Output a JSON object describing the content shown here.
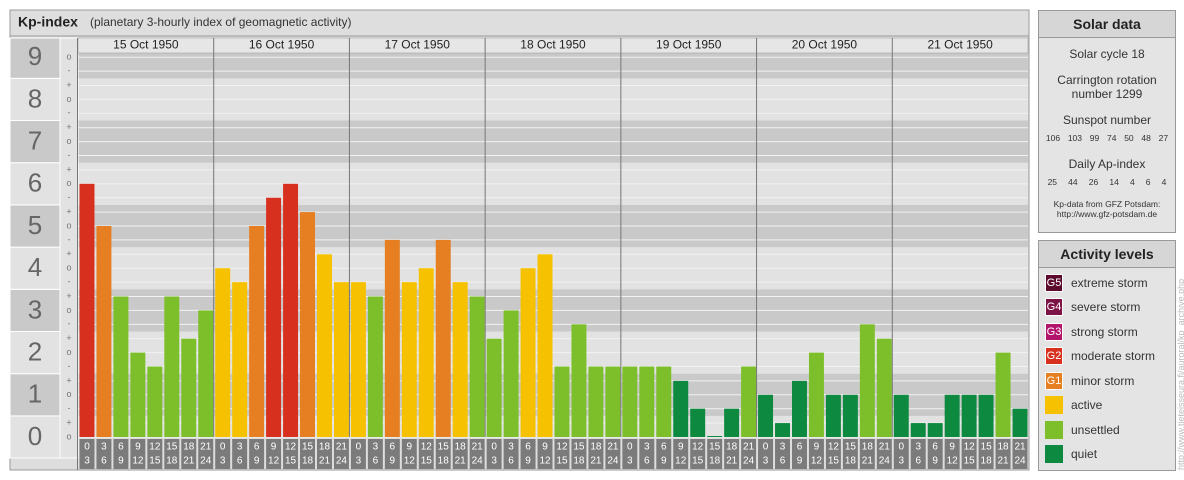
{
  "header": {
    "title": "Kp-index",
    "subtitle": "(planetary 3-hourly index of geomagnetic activity)"
  },
  "chart_data": {
    "type": "bar",
    "ylim": [
      0,
      9.1
    ],
    "yticks": [
      0,
      1,
      2,
      3,
      4,
      5,
      6,
      7,
      8,
      9
    ],
    "minor_ticks": [
      {
        "value": 0,
        "label": "o"
      },
      {
        "value": 0.33,
        "label": "+"
      },
      {
        "value": 0.67,
        "label": "-"
      },
      {
        "value": 1,
        "label": "o"
      },
      {
        "value": 1.33,
        "label": "+"
      },
      {
        "value": 1.67,
        "label": "-"
      },
      {
        "value": 2,
        "label": "o"
      },
      {
        "value": 2.33,
        "label": "+"
      },
      {
        "value": 2.67,
        "label": "-"
      },
      {
        "value": 3,
        "label": "o"
      },
      {
        "value": 3.33,
        "label": "+"
      },
      {
        "value": 3.67,
        "label": "-"
      },
      {
        "value": 4,
        "label": "o"
      },
      {
        "value": 4.33,
        "label": "+"
      },
      {
        "value": 4.67,
        "label": "-"
      },
      {
        "value": 5,
        "label": "o"
      },
      {
        "value": 5.33,
        "label": "+"
      },
      {
        "value": 5.67,
        "label": "-"
      },
      {
        "value": 6,
        "label": "o"
      },
      {
        "value": 6.33,
        "label": "+"
      },
      {
        "value": 6.67,
        "label": "-"
      },
      {
        "value": 7,
        "label": "o"
      },
      {
        "value": 7.33,
        "label": "+"
      },
      {
        "value": 7.67,
        "label": "-"
      },
      {
        "value": 8,
        "label": "o"
      },
      {
        "value": 8.33,
        "label": "+"
      },
      {
        "value": 8.67,
        "label": "-"
      },
      {
        "value": 9,
        "label": "o"
      }
    ],
    "hours": [
      [
        "0",
        "3"
      ],
      [
        "3",
        "6"
      ],
      [
        "6",
        "9"
      ],
      [
        "9",
        "12"
      ],
      [
        "12",
        "15"
      ],
      [
        "15",
        "18"
      ],
      [
        "18",
        "21"
      ],
      [
        "21",
        "24"
      ]
    ],
    "days": [
      {
        "date": "15 Oct 1950",
        "values": [
          6,
          5,
          3.33,
          2,
          1.67,
          3.33,
          2.33,
          3
        ],
        "colors": [
          "#d7301f",
          "#e67e22",
          "#7dbf2a",
          "#7dbf2a",
          "#7dbf2a",
          "#7dbf2a",
          "#7dbf2a",
          "#7dbf2a"
        ]
      },
      {
        "date": "16 Oct 1950",
        "values": [
          4,
          3.67,
          5,
          5.67,
          6,
          5.33,
          4.33,
          3.67
        ],
        "colors": [
          "#f6c100",
          "#f6c100",
          "#e67e22",
          "#d7301f",
          "#d7301f",
          "#e67e22",
          "#f6c100",
          "#f6c100"
        ]
      },
      {
        "date": "17 Oct 1950",
        "values": [
          3.67,
          3.33,
          4.67,
          3.67,
          4,
          4.67,
          3.67,
          3.33
        ],
        "colors": [
          "#f6c100",
          "#7dbf2a",
          "#e67e22",
          "#f6c100",
          "#f6c100",
          "#e67e22",
          "#f6c100",
          "#7dbf2a"
        ]
      },
      {
        "date": "18 Oct 1950",
        "values": [
          2.33,
          3,
          4,
          4.33,
          1.67,
          2.67,
          1.67,
          1.67
        ],
        "colors": [
          "#7dbf2a",
          "#7dbf2a",
          "#f6c100",
          "#f6c100",
          "#7dbf2a",
          "#7dbf2a",
          "#7dbf2a",
          "#7dbf2a"
        ]
      },
      {
        "date": "19 Oct 1950",
        "values": [
          1.67,
          1.67,
          1.67,
          1.33,
          0.67,
          0,
          0.67,
          1.67
        ],
        "colors": [
          "#7dbf2a",
          "#7dbf2a",
          "#7dbf2a",
          "#0d8a3f",
          "#0d8a3f",
          "#0d8a3f",
          "#0d8a3f",
          "#7dbf2a"
        ]
      },
      {
        "date": "20 Oct 1950",
        "values": [
          1,
          0.33,
          1.33,
          2,
          1,
          1,
          2.67,
          2.33
        ],
        "colors": [
          "#0d8a3f",
          "#0d8a3f",
          "#0d8a3f",
          "#7dbf2a",
          "#0d8a3f",
          "#0d8a3f",
          "#7dbf2a",
          "#7dbf2a"
        ]
      },
      {
        "date": "21 Oct 1950",
        "values": [
          1,
          0.33,
          0.33,
          1,
          1,
          1,
          2,
          0.67
        ],
        "colors": [
          "#0d8a3f",
          "#0d8a3f",
          "#0d8a3f",
          "#0d8a3f",
          "#0d8a3f",
          "#0d8a3f",
          "#7dbf2a",
          "#0d8a3f"
        ]
      }
    ]
  },
  "solar_data": {
    "title": "Solar data",
    "cycle": "Solar cycle 18",
    "carrington": "Carrington rotation number 1299",
    "sunspot_label": "Sunspot number",
    "sunspot": [
      106,
      103,
      99,
      74,
      50,
      48,
      27
    ],
    "ap_label": "Daily Ap-index",
    "ap": [
      25,
      44,
      26,
      14,
      4,
      6,
      4
    ],
    "source": "Kp-data from GFZ Potsdam:",
    "url": "http://www.gfz-potsdam.de"
  },
  "activity_levels": {
    "title": "Activity levels",
    "items": [
      {
        "badge": "G5",
        "label": "extreme storm",
        "color": "#5c0b2c"
      },
      {
        "badge": "G4",
        "label": "severe storm",
        "color": "#7d1245"
      },
      {
        "badge": "G3",
        "label": "strong storm",
        "color": "#b3146c"
      },
      {
        "badge": "G2",
        "label": "moderate storm",
        "color": "#d7301f"
      },
      {
        "badge": "G1",
        "label": "minor storm",
        "color": "#e67e22"
      },
      {
        "label": "active",
        "color": "#f6c100"
      },
      {
        "label": "unsettled",
        "color": "#7dbf2a"
      },
      {
        "label": "quiet",
        "color": "#0d8a3f"
      }
    ]
  },
  "watermark": "http://www.tieteisseura.fi/auroral/kp_archive.php"
}
